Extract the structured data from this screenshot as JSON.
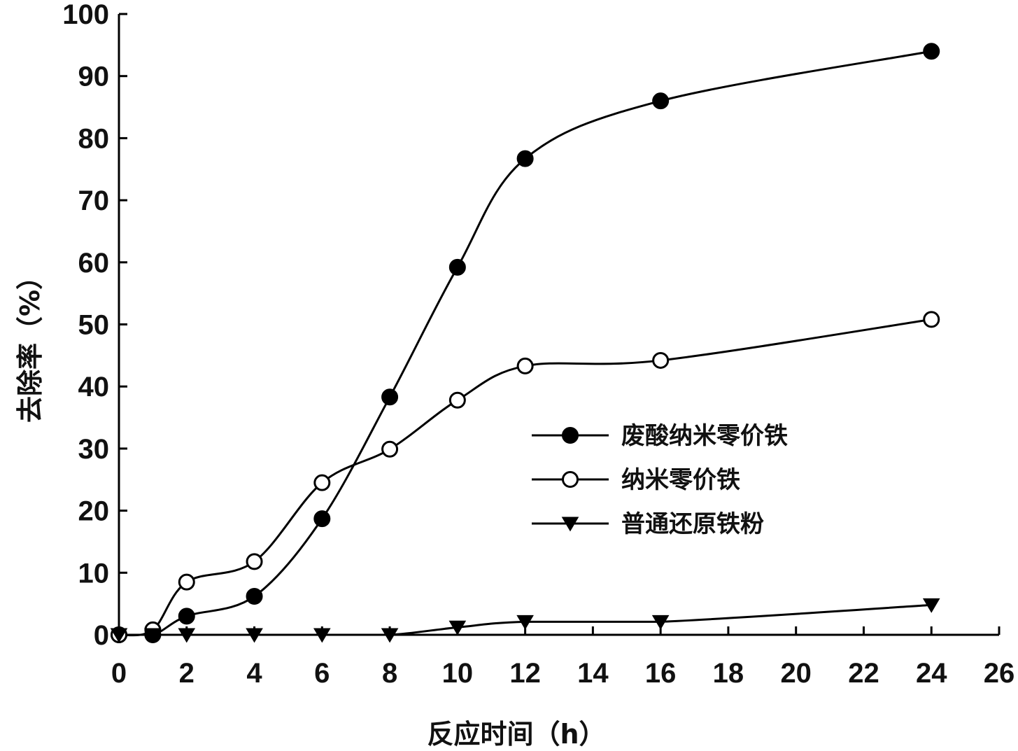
{
  "chart_data": {
    "type": "line",
    "title": "",
    "xlabel": "反应时间（h）",
    "ylabel": "去除率（%）",
    "xlim": [
      0,
      26
    ],
    "ylim": [
      0,
      100
    ],
    "x_ticks": [
      "0",
      "2",
      "4",
      "6",
      "8",
      "10",
      "12",
      "14",
      "16",
      "18",
      "20",
      "22",
      "24",
      "26"
    ],
    "y_ticks": [
      "0",
      "10",
      "20",
      "30",
      "40",
      "50",
      "60",
      "70",
      "80",
      "90",
      "100"
    ],
    "grid": false,
    "legend_position": "center-right",
    "smooth": true,
    "series": [
      {
        "name": "废酸纳米零价铁",
        "marker": "filled-circle",
        "color": "#000000",
        "x": [
          0,
          1,
          2,
          4,
          6,
          8,
          10,
          12,
          16,
          24
        ],
        "y": [
          0,
          0,
          3,
          6.2,
          18.7,
          38.3,
          59.2,
          76.7,
          86,
          94
        ]
      },
      {
        "name": "纳米零价铁",
        "marker": "open-circle",
        "color": "#000000",
        "x": [
          0,
          1,
          2,
          4,
          6,
          8,
          10,
          12,
          16,
          24
        ],
        "y": [
          0,
          0.8,
          8.5,
          11.8,
          24.5,
          29.9,
          37.8,
          43.3,
          44.2,
          50.8
        ]
      },
      {
        "name": "普通还原铁粉",
        "marker": "filled-down-triangle",
        "color": "#000000",
        "x": [
          0,
          1,
          2,
          4,
          6,
          8,
          10,
          12,
          16,
          24
        ],
        "y": [
          0,
          0,
          0,
          0,
          0,
          0,
          1.2,
          2.1,
          2.1,
          4.8
        ]
      }
    ]
  }
}
